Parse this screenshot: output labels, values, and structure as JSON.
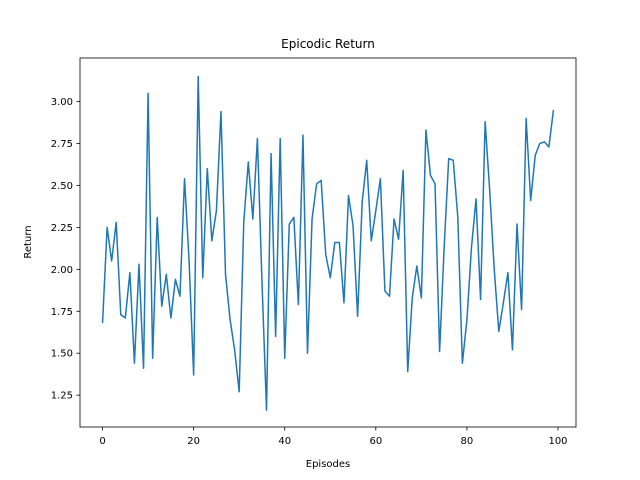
{
  "chart_data": {
    "type": "line",
    "title": "Epicodic Return",
    "xlabel": "Episodes",
    "ylabel": "Return",
    "xlim": [
      -4.95,
      103.95
    ],
    "ylim": [
      1.06,
      3.26
    ],
    "xticks": [
      0,
      20,
      40,
      60,
      80,
      100
    ],
    "yticks": [
      1.25,
      1.5,
      1.75,
      2.0,
      2.25,
      2.5,
      2.75,
      3.0
    ],
    "ytick_labels": [
      "1.25",
      "1.50",
      "1.75",
      "2.00",
      "2.25",
      "2.50",
      "2.75",
      "3.00"
    ],
    "grid": false,
    "line_color": "#1f77b4",
    "series": [
      {
        "x": [
          0,
          1,
          2,
          3,
          4,
          5,
          6,
          7,
          8,
          9,
          10,
          11,
          12,
          13,
          14,
          15,
          16,
          17,
          18,
          19,
          20,
          21,
          22,
          23,
          24,
          25,
          26,
          27,
          28,
          29,
          30,
          31,
          32,
          33,
          34,
          35,
          36,
          37,
          38,
          39,
          40,
          41,
          42,
          43,
          44,
          45,
          46,
          47,
          48,
          49,
          50,
          51,
          52,
          53,
          54,
          55,
          56,
          57,
          58,
          59,
          60,
          61,
          62,
          63,
          64,
          65,
          66,
          67,
          68,
          69,
          70,
          71,
          72,
          73,
          74,
          75,
          76,
          77,
          78,
          79,
          80,
          81,
          82,
          83,
          84,
          85,
          86,
          87,
          88,
          89,
          90,
          91,
          92,
          93,
          94,
          95,
          96,
          97,
          98,
          99
        ],
        "values": [
          1.68,
          2.25,
          2.05,
          2.28,
          1.73,
          1.71,
          1.98,
          1.44,
          2.03,
          1.41,
          3.05,
          1.47,
          2.31,
          1.78,
          1.97,
          1.71,
          1.94,
          1.84,
          2.54,
          2.05,
          1.37,
          3.15,
          1.95,
          2.6,
          2.17,
          2.35,
          2.94,
          1.97,
          1.7,
          1.52,
          1.27,
          2.28,
          2.64,
          2.3,
          2.78,
          1.93,
          1.16,
          2.69,
          1.6,
          2.78,
          1.47,
          2.27,
          2.31,
          1.79,
          2.8,
          1.5,
          2.3,
          2.51,
          2.53,
          2.09,
          1.95,
          2.16,
          2.16,
          1.8,
          2.44,
          2.26,
          1.72,
          2.4,
          2.65,
          2.17,
          2.35,
          2.54,
          1.87,
          1.84,
          2.3,
          2.18,
          2.59,
          1.39,
          1.83,
          2.02,
          1.83,
          2.83,
          2.56,
          2.51,
          1.51,
          2.13,
          2.66,
          2.65,
          2.31,
          1.44,
          1.7,
          2.13,
          2.42,
          1.82,
          2.88,
          2.47,
          2.0,
          1.63,
          1.8,
          1.98,
          1.52,
          2.27,
          1.76,
          2.9,
          2.41,
          2.68,
          2.75,
          2.76,
          2.73,
          2.95
        ]
      }
    ]
  }
}
